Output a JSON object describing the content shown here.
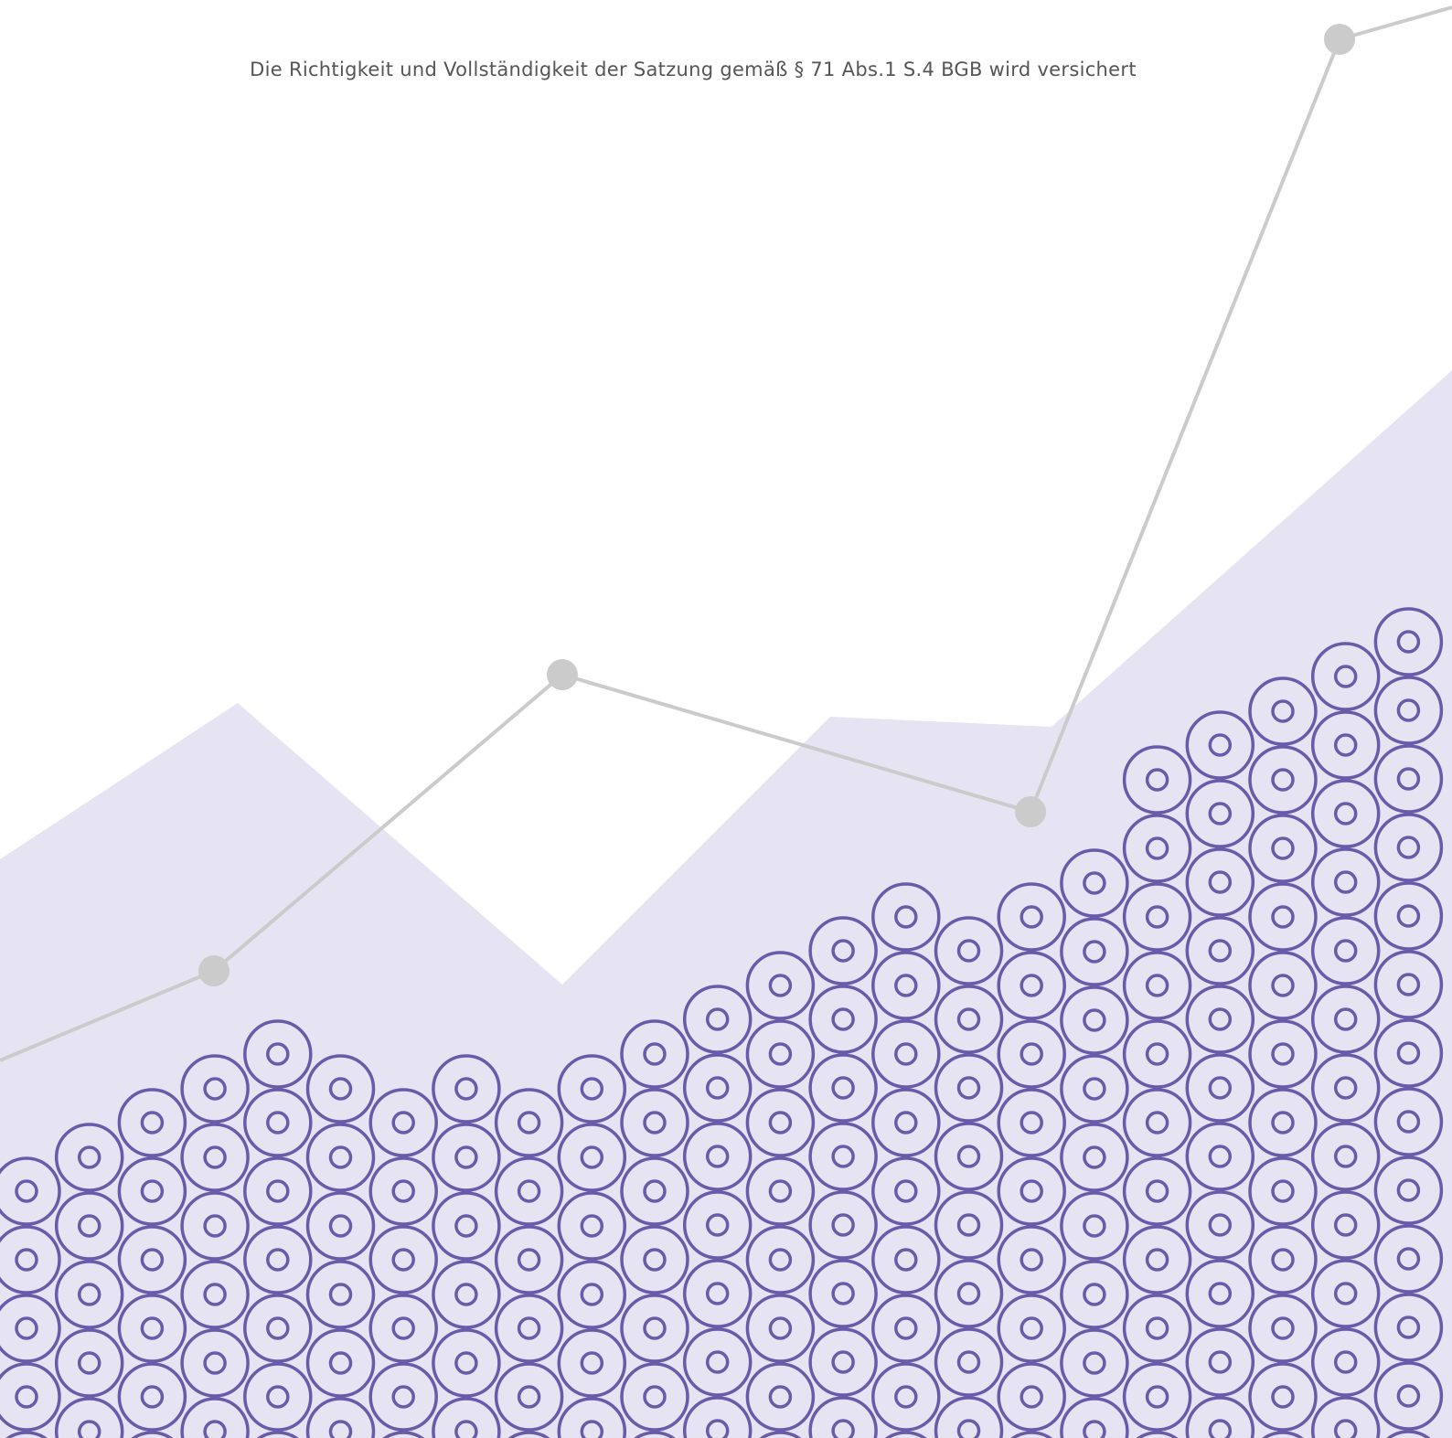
{
  "text": "Die Richtigkeit und Vollständigkeit der Satzung gemäß § 71 Abs.1 S.4 BGB wird versichert"
}
